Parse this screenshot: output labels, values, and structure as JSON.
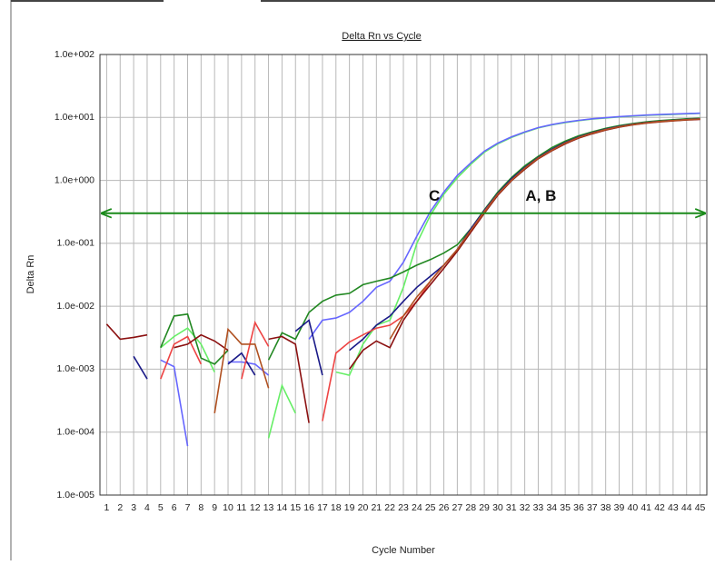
{
  "chart_data": {
    "type": "line",
    "title": "Delta Rn vs Cycle",
    "xlabel": "Cycle Number",
    "ylabel": "Delta Rn",
    "log_y": true,
    "grid": true,
    "xlim": [
      0.5,
      45.5
    ],
    "ylim": [
      1e-05,
      100
    ],
    "xticks": [
      1,
      2,
      3,
      4,
      5,
      6,
      7,
      8,
      9,
      10,
      11,
      12,
      13,
      14,
      15,
      16,
      17,
      18,
      19,
      20,
      21,
      22,
      23,
      24,
      25,
      26,
      27,
      28,
      29,
      30,
      31,
      32,
      33,
      34,
      35,
      36,
      37,
      38,
      39,
      40,
      41,
      42,
      43,
      44,
      45
    ],
    "yticks": [
      {
        "value": 1e-05,
        "label": "1.0e-005"
      },
      {
        "value": 0.0001,
        "label": "1.0e-004"
      },
      {
        "value": 0.001,
        "label": "1.0e-003"
      },
      {
        "value": 0.01,
        "label": "1.0e-002"
      },
      {
        "value": 0.1,
        "label": "1.0e-001"
      },
      {
        "value": 1,
        "label": "1.0e+000"
      },
      {
        "value": 10,
        "label": "1.0e+001"
      },
      {
        "value": 100,
        "label": "1.0e+002"
      }
    ],
    "threshold": 0.3,
    "threshold_color": "#1a8a1a",
    "annotations": [
      {
        "text": "C",
        "x": 25.3,
        "y": 0.55
      },
      {
        "text": "A, B",
        "x": 33.2,
        "y": 0.55
      }
    ],
    "x": [
      1,
      2,
      3,
      4,
      5,
      6,
      7,
      8,
      9,
      10,
      11,
      12,
      13,
      14,
      15,
      16,
      17,
      18,
      19,
      20,
      21,
      22,
      23,
      24,
      25,
      26,
      27,
      28,
      29,
      30,
      31,
      32,
      33,
      34,
      35,
      36,
      37,
      38,
      39,
      40,
      41,
      42,
      43,
      44,
      45
    ],
    "series": [
      {
        "color": "#66ee66",
        "values": [
          null,
          null,
          null,
          null,
          0.0022,
          0.0033,
          0.0045,
          0.0025,
          0.0009,
          null,
          null,
          null,
          8e-05,
          0.00055,
          0.0002,
          null,
          null,
          0.0009,
          0.0008,
          0.0025,
          0.005,
          0.006,
          0.02,
          0.1,
          0.28,
          0.6,
          1.1,
          1.8,
          2.8,
          3.8,
          4.8,
          5.8,
          6.8,
          7.6,
          8.3,
          8.9,
          9.4,
          9.8,
          10.2,
          10.5,
          10.8,
          11,
          11.2,
          11.4,
          11.6
        ]
      },
      {
        "color": "#6666ff",
        "values": [
          null,
          null,
          null,
          null,
          0.0014,
          0.0011,
          6e-05,
          null,
          null,
          0.0013,
          0.0013,
          0.0012,
          0.0008,
          null,
          null,
          0.003,
          0.006,
          0.0065,
          0.008,
          0.012,
          0.02,
          0.025,
          0.05,
          0.13,
          0.32,
          0.65,
          1.2,
          1.9,
          2.9,
          3.9,
          4.9,
          5.9,
          6.9,
          7.7,
          8.4,
          9,
          9.5,
          9.9,
          10.3,
          10.6,
          10.9,
          11.1,
          11.3,
          11.5,
          11.7
        ]
      },
      {
        "color": "#228822",
        "values": [
          null,
          null,
          null,
          null,
          0.0022,
          0.007,
          0.0075,
          0.0015,
          0.0012,
          0.002,
          null,
          null,
          0.0014,
          0.0038,
          0.003,
          0.008,
          0.012,
          0.015,
          0.016,
          0.022,
          0.025,
          0.028,
          0.035,
          0.045,
          0.055,
          0.07,
          0.095,
          0.17,
          0.34,
          0.65,
          1.1,
          1.7,
          2.4,
          3.3,
          4.2,
          5.1,
          5.9,
          6.7,
          7.4,
          8,
          8.5,
          8.9,
          9.2,
          9.5,
          9.7
        ]
      },
      {
        "color": "#1a1a88",
        "values": [
          null,
          null,
          0.0016,
          0.0007,
          null,
          null,
          null,
          null,
          null,
          0.0012,
          0.0018,
          0.0008,
          null,
          null,
          0.004,
          0.006,
          0.0008,
          null,
          0.002,
          0.003,
          0.005,
          0.007,
          0.012,
          0.02,
          0.03,
          0.045,
          0.08,
          0.17,
          0.33,
          0.62,
          1.05,
          1.6,
          2.3,
          3.1,
          4,
          4.9,
          5.7,
          6.5,
          7.2,
          7.8,
          8.3,
          8.7,
          9,
          9.3,
          9.5
        ]
      },
      {
        "color": "#ee4444",
        "values": [
          null,
          null,
          null,
          null,
          0.0007,
          0.0025,
          0.0033,
          0.0012,
          null,
          null,
          0.0007,
          0.0055,
          0.0023,
          null,
          null,
          null,
          0.00015,
          0.0018,
          0.0027,
          0.0035,
          0.0045,
          0.005,
          0.007,
          0.012,
          0.025,
          0.045,
          0.08,
          0.16,
          0.32,
          0.6,
          1,
          1.55,
          2.25,
          3,
          3.9,
          4.8,
          5.6,
          6.4,
          7.1,
          7.7,
          8.2,
          8.6,
          8.9,
          9.2,
          9.4
        ]
      },
      {
        "color": "#8b1010",
        "values": [
          0.0052,
          0.003,
          0.0032,
          0.0035,
          null,
          0.0022,
          0.0025,
          0.0035,
          0.0028,
          0.002,
          null,
          null,
          0.003,
          0.0033,
          0.0025,
          0.00014,
          null,
          null,
          0.001,
          0.002,
          0.0028,
          0.0022,
          0.006,
          0.012,
          0.022,
          0.04,
          0.075,
          0.15,
          0.3,
          0.58,
          0.98,
          1.5,
          2.2,
          2.95,
          3.8,
          4.7,
          5.5,
          6.3,
          7,
          7.6,
          8.1,
          8.5,
          8.8,
          9.1,
          9.3
        ]
      },
      {
        "color": "#b05020",
        "values": [
          null,
          null,
          null,
          null,
          null,
          null,
          null,
          null,
          0.0002,
          0.0043,
          0.0025,
          0.0025,
          0.0005,
          null,
          null,
          null,
          null,
          null,
          null,
          null,
          null,
          0.003,
          0.007,
          0.014,
          0.025,
          0.045,
          0.08,
          0.16,
          0.31,
          0.6,
          1,
          1.55,
          2.25,
          3,
          3.9,
          4.8,
          5.6,
          6.4,
          7.1,
          7.7,
          8.2,
          8.6,
          8.9,
          9.2,
          9.4
        ]
      }
    ]
  }
}
